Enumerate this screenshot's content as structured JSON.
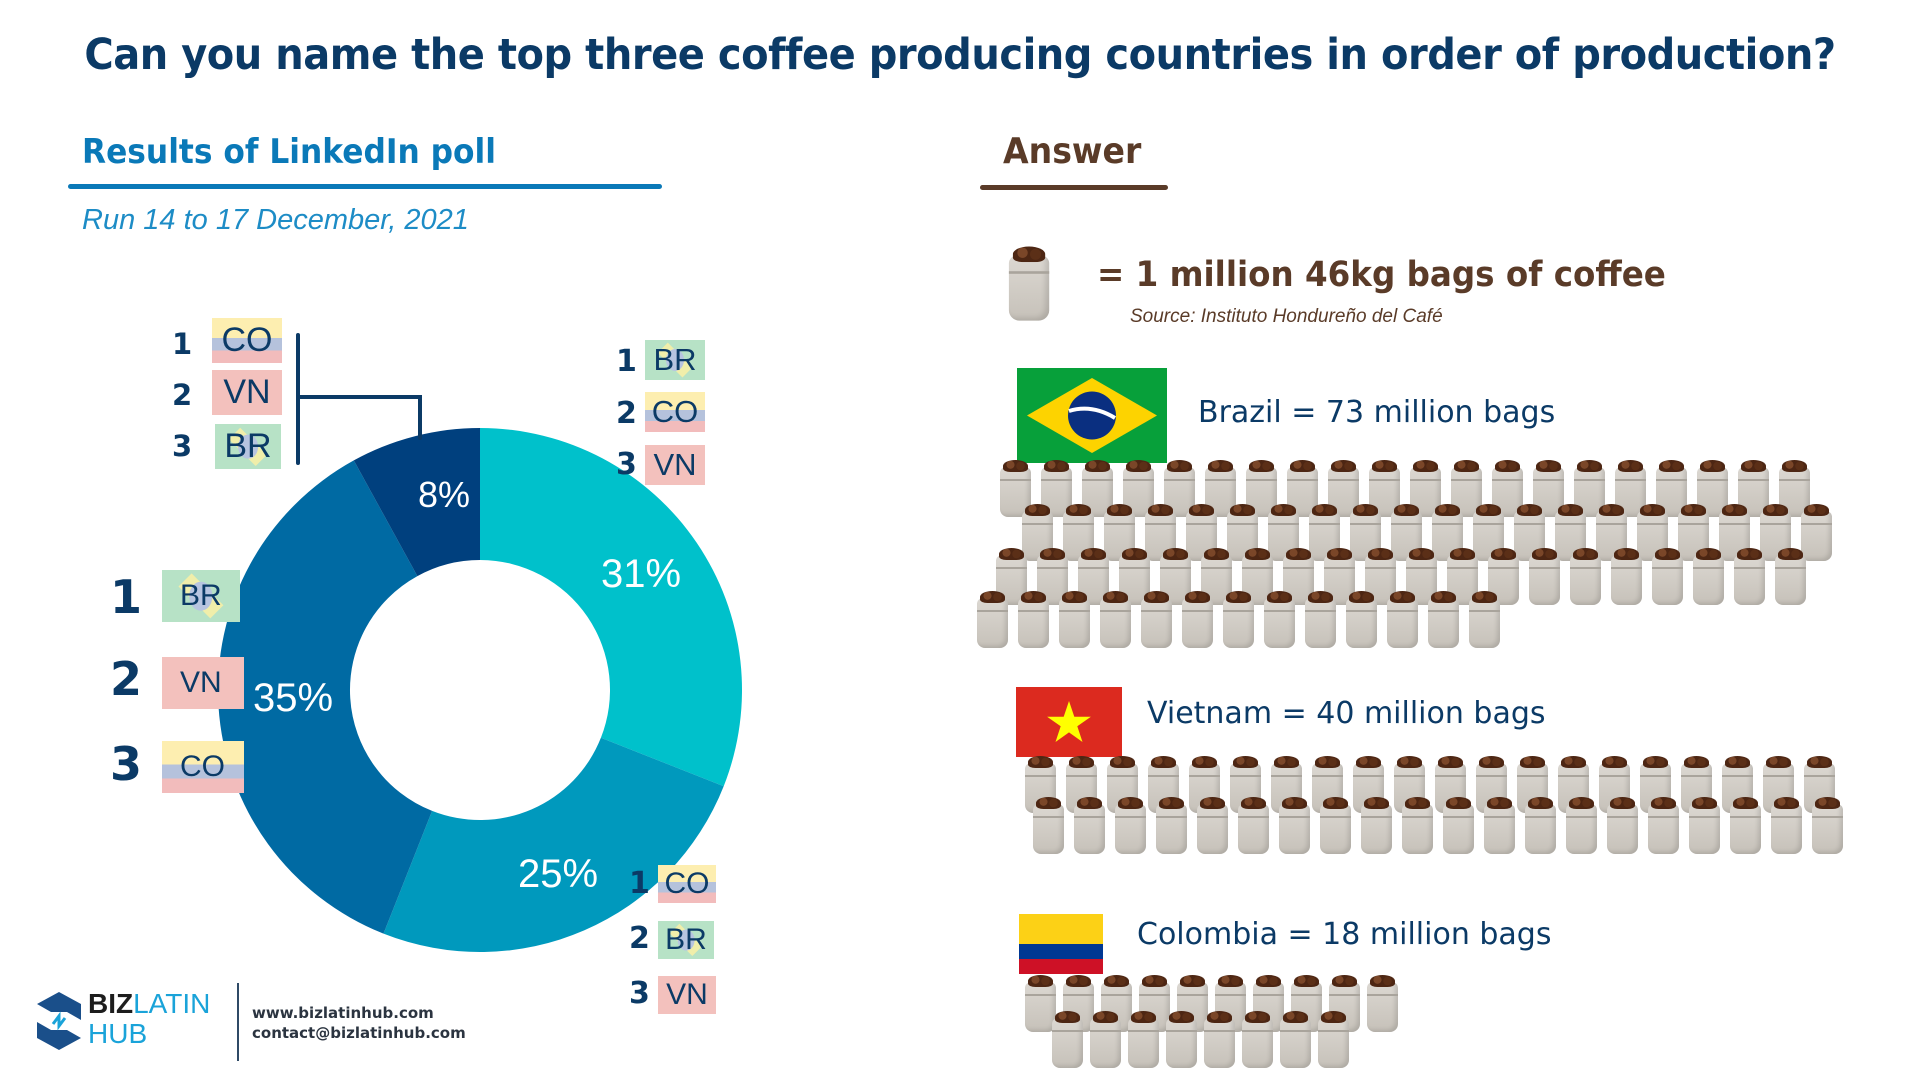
{
  "header": {
    "title": "Can you name the top three coffee producing countries in order of production?"
  },
  "poll": {
    "title": "Results of LinkedIn poll",
    "subtitle": "Run 14 to 17 December, 2021",
    "options": [
      {
        "id": "navy",
        "percent_label": "8%",
        "ranking": [
          {
            "rank": "1",
            "code": "CO"
          },
          {
            "rank": "2",
            "code": "VN"
          },
          {
            "rank": "3",
            "code": "BR"
          }
        ]
      },
      {
        "id": "cyan",
        "percent_label": "31%",
        "ranking": [
          {
            "rank": "1",
            "code": "BR"
          },
          {
            "rank": "2",
            "code": "CO"
          },
          {
            "rank": "3",
            "code": "VN"
          }
        ]
      },
      {
        "id": "teal",
        "percent_label": "25%",
        "ranking": [
          {
            "rank": "1",
            "code": "CO"
          },
          {
            "rank": "2",
            "code": "BR"
          },
          {
            "rank": "3",
            "code": "VN"
          }
        ]
      },
      {
        "id": "blue",
        "percent_label": "35%",
        "ranking": [
          {
            "rank": "1",
            "code": "BR"
          },
          {
            "rank": "2",
            "code": "VN"
          },
          {
            "rank": "3",
            "code": "CO"
          }
        ]
      }
    ]
  },
  "answer": {
    "title": "Answer",
    "legend_text": "= 1 million 46kg bags of coffee",
    "source": "Source: Instituto Hondureño del Café",
    "icon": "coffee-sack-icon",
    "countries": [
      {
        "name": "Brazil",
        "label": "Brazil = 73 million bags",
        "bags": 73,
        "rows": [
          20,
          20,
          20,
          13
        ],
        "flag": "brazil-flag"
      },
      {
        "name": "Vietnam",
        "label": "Vietnam = 40 million bags",
        "bags": 40,
        "rows": [
          20,
          20
        ],
        "flag": "vietnam-flag"
      },
      {
        "name": "Colombia",
        "label": "Colombia = 18 million bags",
        "bags": 18,
        "rows": [
          10,
          8
        ],
        "flag": "colombia-flag"
      }
    ]
  },
  "footer": {
    "logo_biz": "BIZ",
    "logo_latin": "LATIN",
    "logo_hub": "HUB",
    "website": "www.bizlatinhub.com",
    "email": "contact@bizlatinhub.com"
  },
  "colors": {
    "title": "#0b3a66",
    "poll_accent": "#0a79b8",
    "answer_accent": "#5a3b28",
    "seg_cyan": "#00c1cb",
    "seg_teal": "#0099bd",
    "seg_blue": "#006aa3",
    "seg_navy": "#00407e"
  },
  "chart_data": [
    {
      "type": "pie",
      "subtype": "donut",
      "title": "Results of LinkedIn poll",
      "subtitle": "Run 14 to 17 December, 2021",
      "categories": [
        "1 BR, 2 CO, 3 VN",
        "1 CO, 2 BR, 3 VN",
        "1 BR, 2 VN, 3 CO",
        "1 CO, 2 VN, 3 BR"
      ],
      "values": [
        31,
        25,
        35,
        8
      ],
      "value_labels": [
        "31%",
        "25%",
        "35%",
        "8%"
      ],
      "colors": [
        "#00c1cb",
        "#0099bd",
        "#006aa3",
        "#00407e"
      ],
      "start_angle": "12 o'clock, clockwise"
    },
    {
      "type": "bar",
      "subtype": "pictogram",
      "title": "Answer",
      "unit": "1 million 46kg bags of coffee",
      "categories": [
        "Brazil",
        "Vietnam",
        "Colombia"
      ],
      "values": [
        73,
        40,
        18
      ],
      "ylabel": "million bags",
      "source": "Instituto Hondureño del Café"
    }
  ]
}
